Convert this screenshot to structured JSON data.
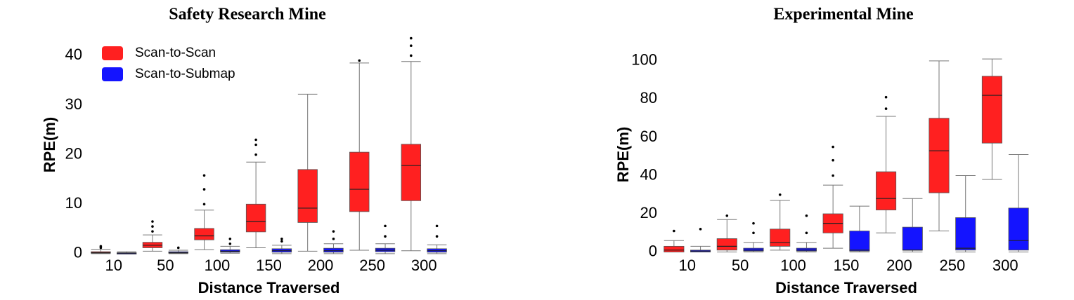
{
  "chart_data": [
    {
      "type": "box",
      "title": "Safety Research Mine",
      "y_label": "RPE(m)",
      "x_label": "Distance Traversed",
      "categories": [
        "10",
        "50",
        "100",
        "150",
        "200",
        "250",
        "300"
      ],
      "ylim": [
        -1,
        45
      ],
      "yticks": [
        0,
        10,
        20,
        30,
        40
      ],
      "series": [
        {
          "name": "Scan-to-Scan",
          "color": "#ff2020",
          "whisker_low": [
            0,
            0.5,
            0.8,
            1.2,
            0.5,
            0.7,
            0.6
          ],
          "q1": [
            0.1,
            1.2,
            2.8,
            4.4,
            6.3,
            8.5,
            10.7
          ],
          "median": [
            0.2,
            1.7,
            3.6,
            6.5,
            9.2,
            13,
            17.8
          ],
          "q3": [
            0.4,
            2.3,
            5.1,
            10,
            17,
            20.5,
            22.1
          ],
          "whisker_high": [
            0.9,
            3.8,
            8.8,
            18.5,
            32.2,
            38.5,
            38.8
          ],
          "outliers": [
            [
              1.2,
              1.5
            ],
            [
              4.5,
              5.5,
              6.5
            ],
            [
              10,
              13,
              15.8
            ],
            [
              20,
              22,
              23
            ],
            [],
            [
              39
            ],
            [
              40,
              42,
              43.5
            ]
          ]
        },
        {
          "name": "Scan-to-Submap",
          "color": "#1414ff",
          "whisker_low": [
            0,
            0,
            0.1,
            0,
            0,
            0,
            0
          ],
          "q1": [
            0.05,
            0.1,
            0.3,
            0.3,
            0.3,
            0.4,
            0.3
          ],
          "median": [
            0.1,
            0.2,
            0.5,
            0.6,
            0.6,
            0.7,
            0.6
          ],
          "q3": [
            0.2,
            0.4,
            0.8,
            1,
            1.1,
            1.1,
            1
          ],
          "whisker_high": [
            0.4,
            0.7,
            1.5,
            1.7,
            2,
            2,
            1.8
          ],
          "outliers": [
            [],
            [
              1.2
            ],
            [
              2,
              3
            ],
            [
              2.5,
              3
            ],
            [
              3,
              4.5
            ],
            [
              3.5,
              5.6
            ],
            [
              3.5,
              5.6
            ]
          ]
        }
      ]
    },
    {
      "type": "box",
      "title": "Experimental Mine",
      "y_label": "RPE(m)",
      "x_label": "Distance Traversed",
      "categories": [
        "10",
        "50",
        "100",
        "150",
        "200",
        "250",
        "300"
      ],
      "ylim": [
        -2,
        104
      ],
      "yticks": [
        0,
        20,
        40,
        60,
        80,
        100
      ],
      "series": [
        {
          "color": "#ff2020",
          "whisker_low": [
            0,
            0,
            1,
            2,
            10,
            11,
            38
          ],
          "q1": [
            0,
            1,
            3,
            10,
            22,
            31,
            57
          ],
          "median": [
            1,
            3,
            5,
            15,
            28,
            53,
            82
          ],
          "q3": [
            3,
            7,
            12,
            20,
            42,
            70,
            92
          ],
          "whisker_high": [
            6,
            17,
            27,
            35,
            71,
            100,
            101
          ],
          "outliers": [
            [
              11
            ],
            [
              19
            ],
            [
              30
            ],
            [
              40,
              48,
              55
            ],
            [
              75,
              81
            ],
            [],
            []
          ]
        },
        {
          "color": "#1414ff",
          "whisker_low": [
            0,
            0,
            0,
            0,
            0,
            0,
            0
          ],
          "q1": [
            0,
            0.5,
            0.5,
            0.5,
            1,
            1,
            1
          ],
          "median": [
            0.5,
            1,
            1,
            1,
            1,
            2,
            6
          ],
          "q3": [
            1,
            2,
            2,
            11,
            13,
            18,
            23
          ],
          "whisker_high": [
            3,
            5,
            5,
            24,
            28,
            40,
            51
          ],
          "outliers": [
            [
              12
            ],
            [
              10,
              15
            ],
            [
              10,
              19
            ],
            [],
            [],
            [],
            []
          ]
        }
      ]
    }
  ]
}
